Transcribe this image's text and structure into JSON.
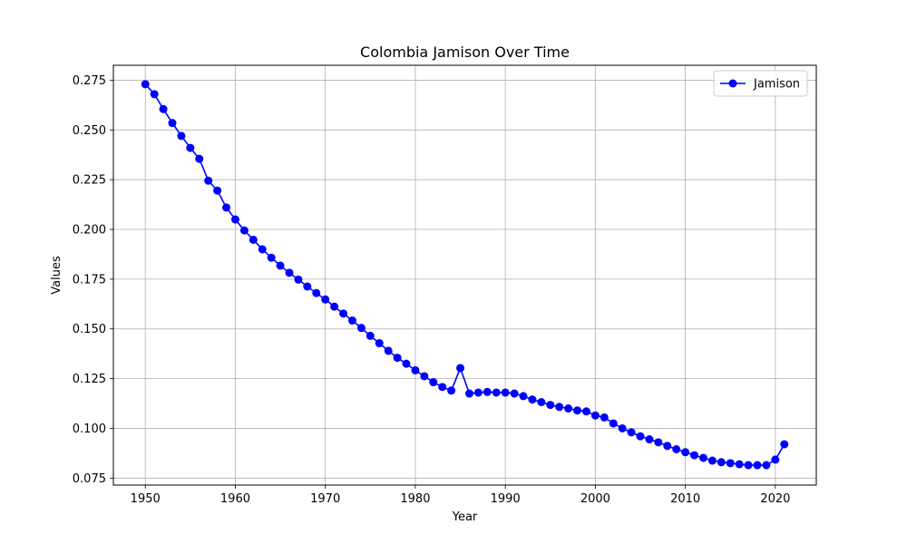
{
  "chart_data": {
    "type": "line",
    "title": "Colombia Jamison Over Time",
    "xlabel": "Year",
    "ylabel": "Values",
    "xlim": [
      1946.45,
      2024.55
    ],
    "ylim": [
      0.0715,
      0.2825
    ],
    "xticks": [
      1950,
      1960,
      1970,
      1980,
      1990,
      2000,
      2010,
      2020
    ],
    "yticks": [
      0.075,
      0.1,
      0.125,
      0.15,
      0.175,
      0.2,
      0.225,
      0.25,
      0.275
    ],
    "ytick_labels": [
      "0.075",
      "0.100",
      "0.125",
      "0.150",
      "0.175",
      "0.200",
      "0.225",
      "0.250",
      "0.275"
    ],
    "grid": true,
    "legend_position": "top-right",
    "series": [
      {
        "name": "Jamison",
        "color": "#0000ff",
        "marker": "circle",
        "x": [
          1950,
          1951,
          1952,
          1953,
          1954,
          1955,
          1956,
          1957,
          1958,
          1959,
          1960,
          1961,
          1962,
          1963,
          1964,
          1965,
          1966,
          1967,
          1968,
          1969,
          1970,
          1971,
          1972,
          1973,
          1974,
          1975,
          1976,
          1977,
          1978,
          1979,
          1980,
          1981,
          1982,
          1983,
          1984,
          1985,
          1986,
          1987,
          1988,
          1989,
          1990,
          1991,
          1992,
          1993,
          1994,
          1995,
          1996,
          1997,
          1998,
          1999,
          2000,
          2001,
          2002,
          2003,
          2004,
          2005,
          2006,
          2007,
          2008,
          2009,
          2010,
          2011,
          2012,
          2013,
          2014,
          2015,
          2016,
          2017,
          2018,
          2019,
          2020,
          2021
        ],
        "y": [
          0.273,
          0.268,
          0.2605,
          0.2535,
          0.247,
          0.241,
          0.2355,
          0.2245,
          0.2195,
          0.211,
          0.205,
          0.1995,
          0.1948,
          0.19,
          0.1858,
          0.1818,
          0.1782,
          0.1748,
          0.1713,
          0.168,
          0.1648,
          0.1612,
          0.1577,
          0.1542,
          0.1505,
          0.1465,
          0.1428,
          0.139,
          0.1355,
          0.1325,
          0.1292,
          0.1262,
          0.1232,
          0.1208,
          0.119,
          0.1303,
          0.1175,
          0.118,
          0.1183,
          0.118,
          0.118,
          0.1175,
          0.1162,
          0.1145,
          0.1132,
          0.1118,
          0.1108,
          0.11,
          0.109,
          0.1085,
          0.1065,
          0.1055,
          0.1025,
          0.1,
          0.098,
          0.096,
          0.0945,
          0.093,
          0.0912,
          0.0895,
          0.088,
          0.0865,
          0.0852,
          0.0838,
          0.083,
          0.0825,
          0.082,
          0.0815,
          0.0815,
          0.0815,
          0.0843,
          0.092
        ]
      }
    ]
  }
}
